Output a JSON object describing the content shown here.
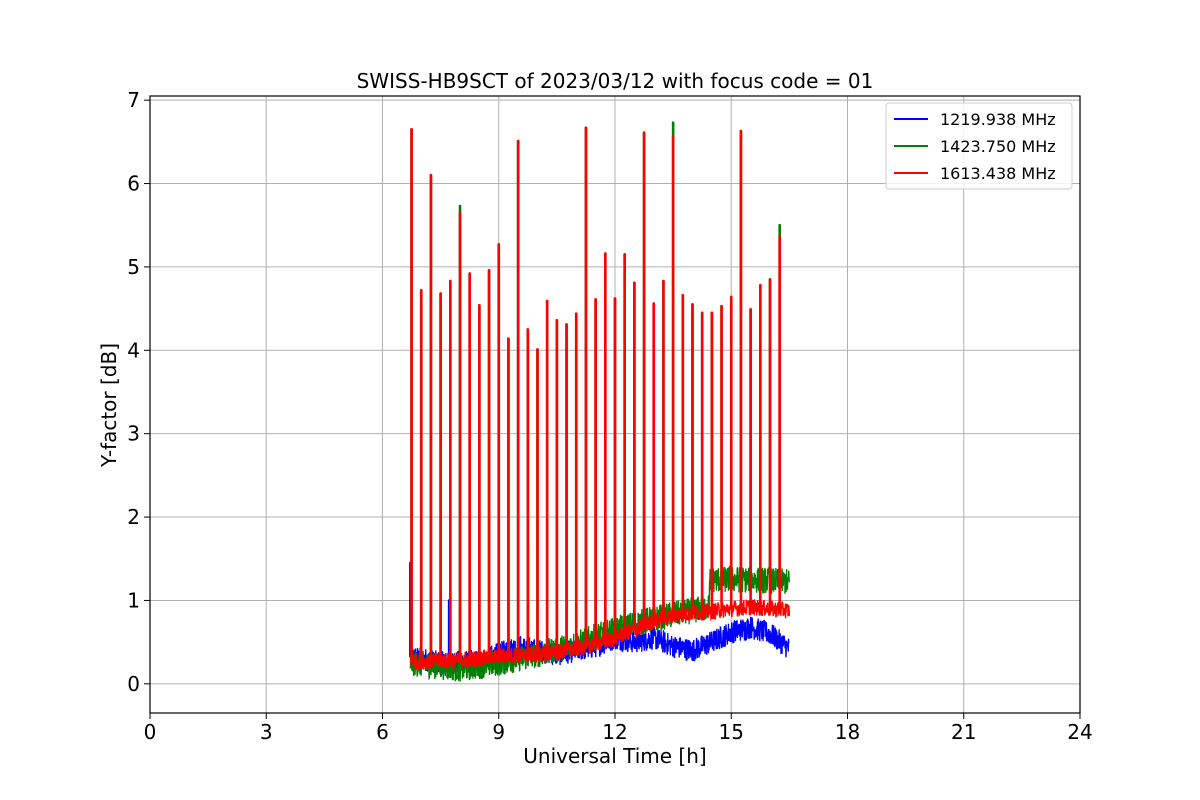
{
  "chart_data": {
    "type": "line",
    "title": "SWISS-HB9SCT of 2023/03/12 with focus code = 01",
    "xlabel": "Universal Time [h]",
    "ylabel": "Y-factor [dB]",
    "xlim": [
      0,
      24
    ],
    "ylim": [
      -0.35,
      7.05
    ],
    "xticks": [
      0,
      3,
      6,
      9,
      12,
      15,
      18,
      21,
      24
    ],
    "yticks": [
      0,
      1,
      2,
      3,
      4,
      5,
      6,
      7
    ],
    "grid": true,
    "legend_position": "top-right",
    "series": [
      {
        "name": "1219.938 MHz",
        "color": "#0000ff",
        "baseline": [
          [
            6.72,
            0.33
          ],
          [
            7.5,
            0.25
          ],
          [
            8.5,
            0.27
          ],
          [
            9.5,
            0.45
          ],
          [
            10.5,
            0.35
          ],
          [
            11.5,
            0.45
          ],
          [
            12.0,
            0.55
          ],
          [
            12.5,
            0.5
          ],
          [
            13.0,
            0.55
          ],
          [
            13.5,
            0.45
          ],
          [
            14.0,
            0.4
          ],
          [
            14.5,
            0.5
          ],
          [
            15.0,
            0.62
          ],
          [
            15.5,
            0.68
          ],
          [
            16.0,
            0.6
          ],
          [
            16.5,
            0.42
          ]
        ],
        "noise": 0.14,
        "peaks": [
          [
            6.72,
            1.45
          ],
          [
            7.72,
            1.0
          ],
          [
            9.75,
            1.65
          ]
        ]
      },
      {
        "name": "1423.750 MHz",
        "color": "#008000",
        "baseline": [
          [
            6.72,
            0.25
          ],
          [
            8.0,
            0.18
          ],
          [
            9.0,
            0.25
          ],
          [
            10.0,
            0.35
          ],
          [
            11.0,
            0.48
          ],
          [
            12.0,
            0.65
          ],
          [
            13.0,
            0.78
          ],
          [
            14.0,
            0.88
          ],
          [
            14.42,
            0.92
          ],
          [
            14.45,
            1.25
          ],
          [
            15.5,
            1.25
          ],
          [
            16.5,
            1.22
          ]
        ],
        "noise": 0.16,
        "peaks": [
          [
            6.75,
            6.65
          ],
          [
            7.0,
            4.72
          ],
          [
            7.25,
            6.1
          ],
          [
            7.5,
            4.68
          ],
          [
            7.75,
            4.83
          ],
          [
            8.0,
            5.73
          ],
          [
            8.25,
            4.92
          ],
          [
            8.5,
            4.54
          ],
          [
            8.75,
            4.96
          ],
          [
            9.0,
            5.27
          ],
          [
            9.25,
            4.14
          ],
          [
            9.5,
            6.51
          ],
          [
            9.75,
            4.25
          ],
          [
            10.0,
            4.01
          ],
          [
            10.25,
            4.59
          ],
          [
            10.5,
            4.36
          ],
          [
            10.75,
            4.31
          ],
          [
            11.0,
            4.44
          ],
          [
            11.25,
            6.67
          ],
          [
            11.5,
            4.61
          ],
          [
            11.75,
            5.16
          ],
          [
            12.0,
            4.62
          ],
          [
            12.25,
            5.15
          ],
          [
            12.5,
            4.81
          ],
          [
            12.75,
            6.61
          ],
          [
            13.0,
            4.56
          ],
          [
            13.25,
            4.83
          ],
          [
            13.5,
            6.73
          ],
          [
            13.75,
            4.66
          ],
          [
            14.0,
            4.55
          ],
          [
            14.25,
            4.45
          ],
          [
            14.5,
            4.45
          ],
          [
            14.75,
            4.53
          ],
          [
            15.0,
            4.64
          ],
          [
            15.25,
            6.63
          ],
          [
            15.5,
            4.49
          ],
          [
            15.75,
            4.78
          ],
          [
            16.0,
            4.85
          ],
          [
            16.25,
            5.5
          ]
        ]
      },
      {
        "name": "1613.438 MHz",
        "color": "#ff0000",
        "baseline": [
          [
            6.72,
            0.27
          ],
          [
            8.0,
            0.28
          ],
          [
            9.0,
            0.33
          ],
          [
            10.0,
            0.35
          ],
          [
            11.0,
            0.42
          ],
          [
            11.5,
            0.48
          ],
          [
            12.0,
            0.55
          ],
          [
            12.5,
            0.65
          ],
          [
            13.0,
            0.75
          ],
          [
            13.5,
            0.82
          ],
          [
            14.0,
            0.85
          ],
          [
            14.5,
            0.87
          ],
          [
            15.0,
            0.9
          ],
          [
            15.5,
            0.92
          ],
          [
            16.0,
            0.9
          ],
          [
            16.5,
            0.88
          ]
        ],
        "noise": 0.1,
        "peaks": [
          [
            6.75,
            6.65
          ],
          [
            7.0,
            4.72
          ],
          [
            7.25,
            6.1
          ],
          [
            7.5,
            4.68
          ],
          [
            7.75,
            4.83
          ],
          [
            8.0,
            5.65
          ],
          [
            8.25,
            4.92
          ],
          [
            8.5,
            4.54
          ],
          [
            8.75,
            4.96
          ],
          [
            9.0,
            5.27
          ],
          [
            9.25,
            4.14
          ],
          [
            9.5,
            6.51
          ],
          [
            9.75,
            4.25
          ],
          [
            10.0,
            4.01
          ],
          [
            10.25,
            4.59
          ],
          [
            10.5,
            4.36
          ],
          [
            10.75,
            4.31
          ],
          [
            11.0,
            4.44
          ],
          [
            11.25,
            6.67
          ],
          [
            11.5,
            4.61
          ],
          [
            11.75,
            5.16
          ],
          [
            12.0,
            4.62
          ],
          [
            12.25,
            5.15
          ],
          [
            12.5,
            4.81
          ],
          [
            12.75,
            6.61
          ],
          [
            13.0,
            4.56
          ],
          [
            13.25,
            4.83
          ],
          [
            13.5,
            6.56
          ],
          [
            13.75,
            4.66
          ],
          [
            14.0,
            4.55
          ],
          [
            14.25,
            4.45
          ],
          [
            14.5,
            4.45
          ],
          [
            14.75,
            4.53
          ],
          [
            15.0,
            4.64
          ],
          [
            15.25,
            6.63
          ],
          [
            15.5,
            4.49
          ],
          [
            15.75,
            4.78
          ],
          [
            16.0,
            4.85
          ],
          [
            16.25,
            5.36
          ]
        ]
      }
    ]
  }
}
